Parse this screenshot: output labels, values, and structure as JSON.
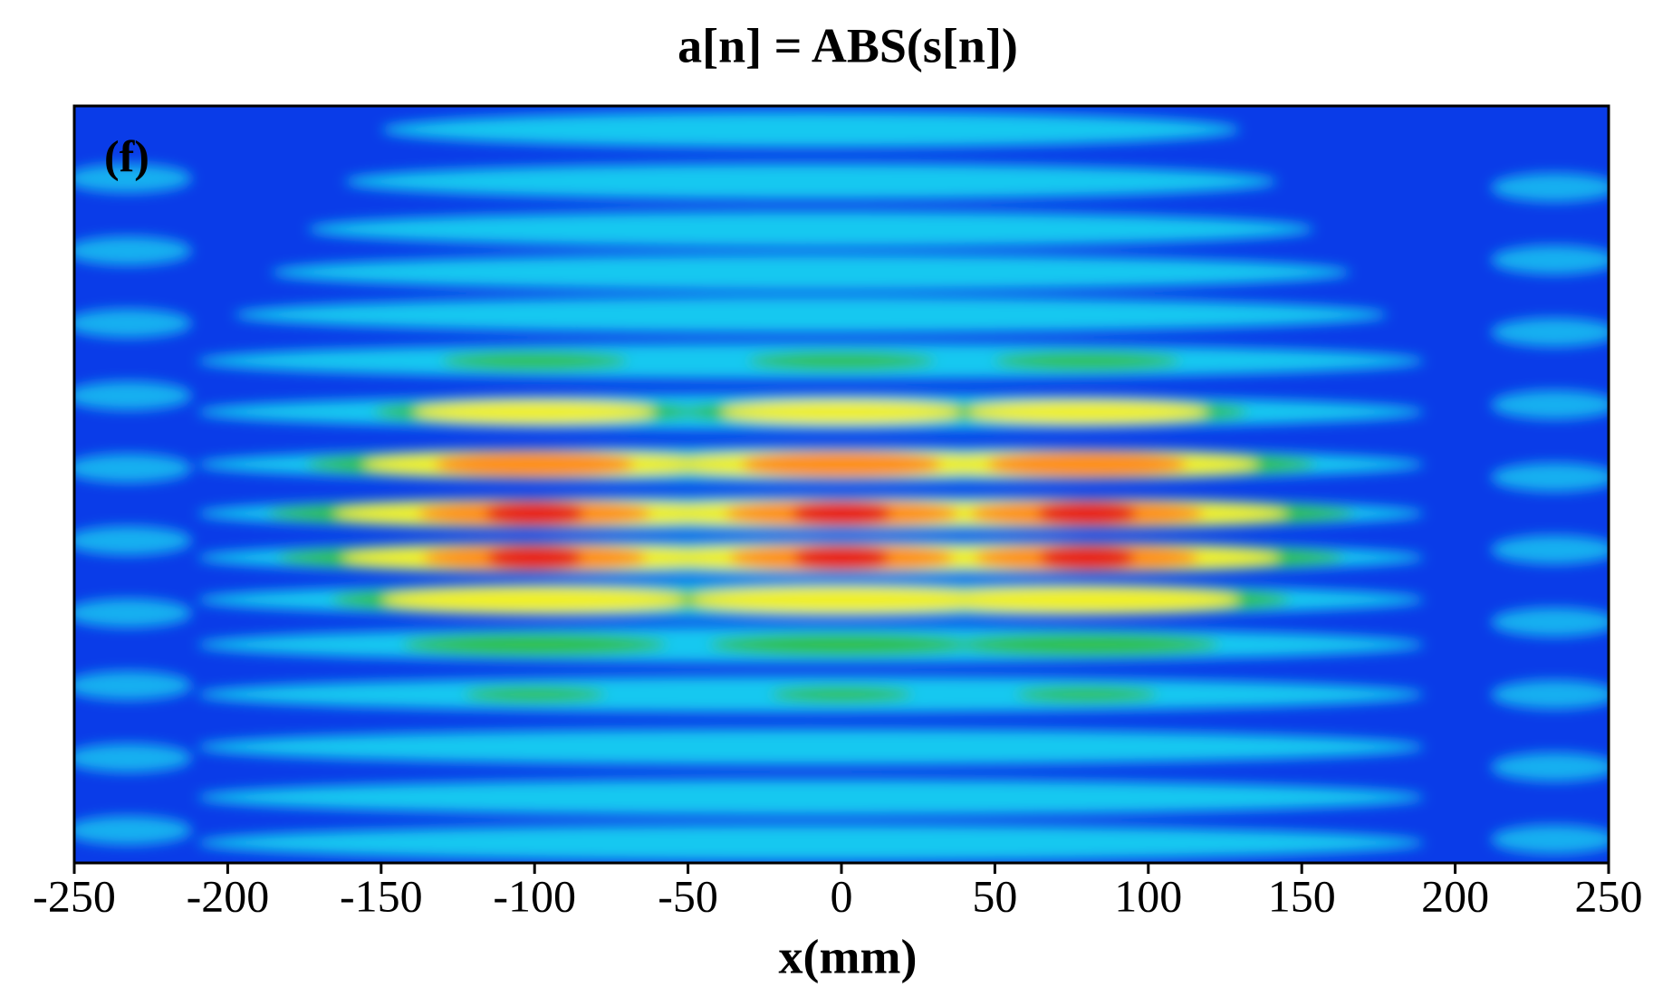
{
  "chart_data": {
    "type": "contour",
    "title": "a[n] = ABS(s[n])",
    "panel_label": "(f)",
    "xlabel": "x(mm)",
    "xlim": [
      -250,
      250
    ],
    "xticks": [
      -250,
      -200,
      -150,
      -100,
      -50,
      0,
      50,
      100,
      150,
      200,
      250
    ]
  }
}
